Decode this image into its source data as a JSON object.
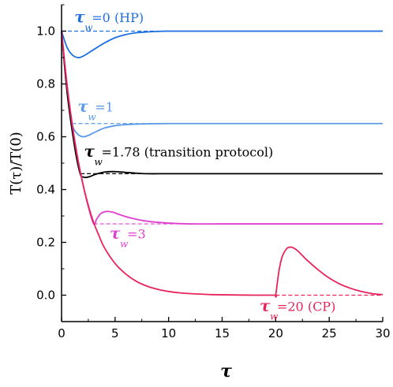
{
  "chart_data": {
    "type": "line",
    "xlabel": "τ",
    "ylabel": "T(τ)/T(0)",
    "xlim": [
      0,
      30
    ],
    "ylim": [
      -0.1,
      1.1
    ],
    "xticks": [
      0,
      5,
      10,
      15,
      20,
      25,
      30
    ],
    "yticks": [
      0.0,
      0.2,
      0.4,
      0.6,
      0.8,
      1.0
    ],
    "ytick_labels": [
      "0.0",
      "0.2",
      "0.4",
      "0.6",
      "0.8",
      "1.0"
    ],
    "grid": false,
    "series": [
      {
        "color": "#1f6fe0",
        "x": [
          0,
          0.5,
          1,
          1.5,
          2,
          3,
          4,
          5,
          6,
          7,
          8,
          9,
          10,
          11,
          12,
          15,
          20,
          25,
          30
        ],
        "y": [
          1.0,
          0.94,
          0.91,
          0.9,
          0.905,
          0.93,
          0.955,
          0.975,
          0.987,
          0.994,
          0.997,
          0.999,
          1.0,
          1.0,
          1.0,
          1.0,
          1.0,
          1.0,
          1.0
        ],
        "asymptote": 1.0,
        "dash_from": 0
      },
      {
        "color": "#5b9ae6",
        "x": [
          0,
          0.3,
          0.6,
          1,
          1.5,
          2,
          2.5,
          3,
          4,
          5,
          6,
          7,
          8,
          10,
          12,
          15,
          20,
          25,
          30
        ],
        "y": [
          1.0,
          0.86,
          0.74,
          0.645,
          0.61,
          0.6,
          0.605,
          0.615,
          0.633,
          0.642,
          0.646,
          0.648,
          0.649,
          0.65,
          0.65,
          0.65,
          0.65,
          0.65,
          0.65
        ],
        "asymptote": 0.65,
        "dash_from": 1
      },
      {
        "color": "#000000",
        "x": [
          0,
          0.3,
          0.6,
          1,
          1.4,
          1.78,
          2.0,
          2.3,
          2.7,
          3.2,
          4,
          5,
          6,
          7,
          8,
          9,
          10,
          12,
          15,
          20,
          25,
          30
        ],
        "y": [
          1.0,
          0.86,
          0.74,
          0.62,
          0.52,
          0.455,
          0.448,
          0.446,
          0.45,
          0.458,
          0.466,
          0.468,
          0.465,
          0.462,
          0.46,
          0.46,
          0.46,
          0.46,
          0.46,
          0.46,
          0.46,
          0.46
        ],
        "asymptote": 0.46,
        "dash_from": 1.78
      },
      {
        "color": "#e040d0",
        "x": [
          0,
          0.5,
          1,
          1.5,
          2,
          2.5,
          3,
          3.3,
          3.7,
          4.2,
          4.8,
          5.5,
          6.5,
          8,
          10,
          12,
          15,
          20,
          25,
          30
        ],
        "y": [
          1.0,
          0.8,
          0.645,
          0.52,
          0.42,
          0.335,
          0.27,
          0.29,
          0.31,
          0.317,
          0.314,
          0.304,
          0.292,
          0.28,
          0.273,
          0.27,
          0.27,
          0.27,
          0.27,
          0.27
        ],
        "asymptote": 0.27,
        "dash_from": 3
      },
      {
        "color": "#e8245a",
        "x": [
          0,
          0.5,
          1,
          1.5,
          2,
          2.5,
          3,
          3.5,
          4,
          5,
          6,
          7,
          8,
          9,
          10,
          11,
          12,
          13,
          14,
          16,
          18,
          19.9,
          20,
          20.3,
          20.6,
          21,
          21.3,
          21.6,
          22,
          22.5,
          23,
          24,
          25,
          26,
          27,
          28,
          29,
          30
        ],
        "y": [
          1.0,
          0.8,
          0.645,
          0.52,
          0.42,
          0.34,
          0.275,
          0.225,
          0.18,
          0.12,
          0.08,
          0.052,
          0.034,
          0.022,
          0.014,
          0.009,
          0.006,
          0.004,
          0.002,
          0.001,
          0.0,
          0.0,
          0.0,
          0.09,
          0.145,
          0.175,
          0.182,
          0.18,
          0.17,
          0.15,
          0.13,
          0.095,
          0.065,
          0.042,
          0.026,
          0.014,
          0.006,
          0.002
        ],
        "asymptote": 0.0,
        "dash_from": 20
      }
    ],
    "annotations": [
      {
        "tau": "τ",
        "sub": "w",
        "text": "=0 (HP)",
        "color": "#1f6fe0",
        "x": 1.2,
        "y": 1.035
      },
      {
        "tau": "τ",
        "sub": "w",
        "text": "=1",
        "color": "#5b9ae6",
        "x": 1.5,
        "y": 0.695
      },
      {
        "tau": "τ",
        "sub": "w",
        "text": "=1.78 (transition protocol)",
        "color": "#000000",
        "x": 2.1,
        "y": 0.525
      },
      {
        "tau": "τ",
        "sub": "w",
        "text": "=3",
        "color": "#e040d0",
        "x": 4.5,
        "y": 0.215
      },
      {
        "tau": "τ",
        "sub": "w",
        "text": "=20 (CP)",
        "color": "#e8245a",
        "x": 18.5,
        "y": -0.06
      }
    ]
  }
}
